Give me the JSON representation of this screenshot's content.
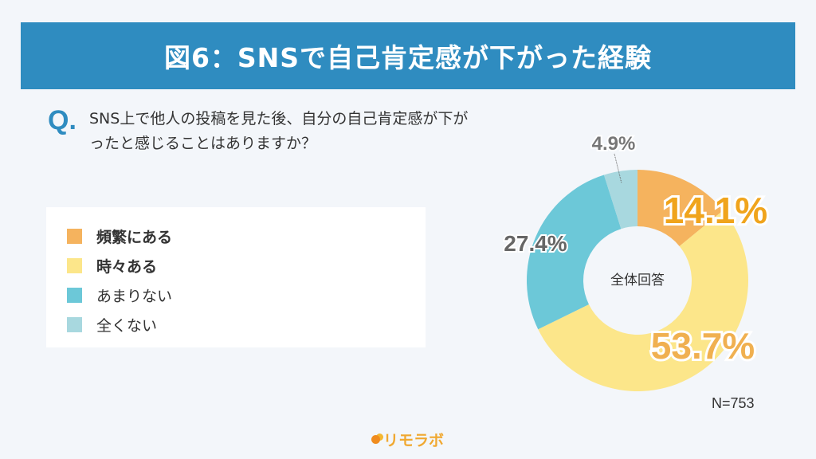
{
  "title": "図6：SNSで自己肯定感が下がった経験",
  "question": {
    "mark": "Q.",
    "text": "SNS上で他人の投稿を見た後、自分の自己肯定感が下がったと感じることはありますか？"
  },
  "chart_data": {
    "type": "pie",
    "donut": true,
    "center_label": "全体回答",
    "categories": [
      "頻繁にある",
      "時々ある",
      "あまりない",
      "全くない"
    ],
    "values": [
      14.1,
      53.7,
      27.4,
      4.9
    ],
    "labels": [
      "14.1%",
      "53.7%",
      "27.4%",
      "4.9%"
    ],
    "colors": [
      "#f5b35e",
      "#fce68a",
      "#6cc8d8",
      "#a8d8df"
    ],
    "label_colors": [
      "#f0a41c",
      "#f0b050",
      "#666666",
      "#777777"
    ],
    "legend_position": "left",
    "note": "N=753"
  },
  "logo": "リモラボ"
}
